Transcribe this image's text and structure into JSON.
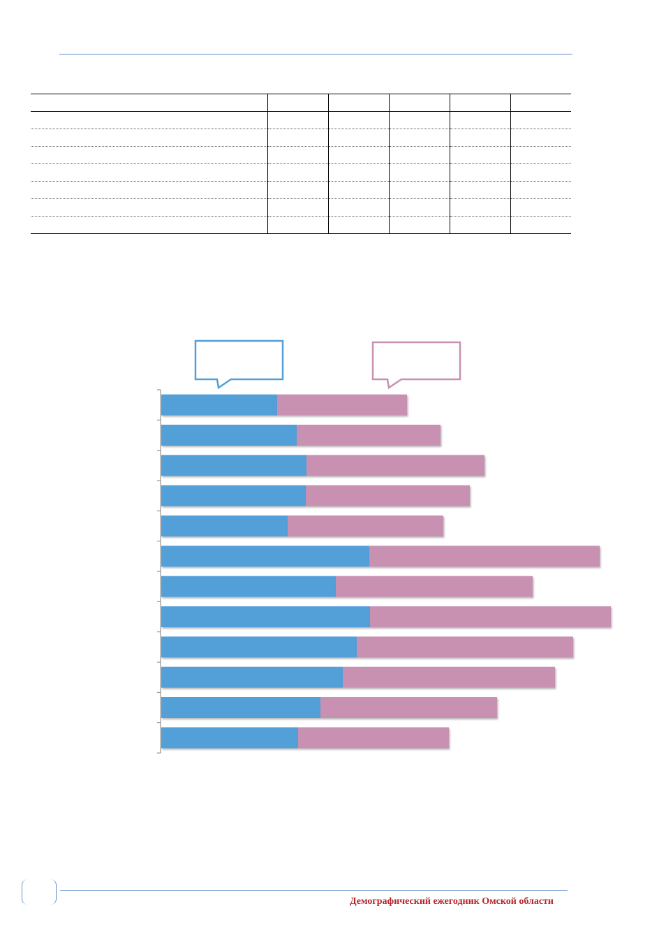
{
  "table": {
    "header": [
      "",
      "",
      "",
      "",
      "",
      ""
    ],
    "rows": [
      [
        "",
        "",
        "",
        "",
        "",
        ""
      ],
      [
        "",
        "",
        "",
        "",
        "",
        ""
      ],
      [
        "",
        "",
        "",
        "",
        "",
        ""
      ],
      [
        "",
        "",
        "",
        "",
        "",
        ""
      ],
      [
        "",
        "",
        "",
        "",
        "",
        ""
      ],
      [
        "",
        "",
        "",
        "",
        "",
        ""
      ],
      [
        "",
        "",
        "",
        "",
        "",
        ""
      ]
    ]
  },
  "chart_data": {
    "type": "bar",
    "orientation": "horizontal",
    "stacked": true,
    "title": "",
    "xlabel": "",
    "ylabel": "",
    "categories": [
      "",
      "",
      "",
      "",
      "",
      "",
      "",
      "",
      "",
      "",
      "",
      ""
    ],
    "series": [
      {
        "color": "#539fd8",
        "callout_text": "",
        "values": [
          166,
          194,
          208,
          207,
          181,
          298,
          250,
          299,
          280,
          260,
          228,
          196
        ]
      },
      {
        "color": "#c891b2",
        "callout_text": "",
        "values": [
          186,
          206,
          255,
          235,
          223,
          330,
          282,
          345,
          310,
          304,
          253,
          216
        ]
      }
    ],
    "grid": false,
    "legend": "callouts-top"
  },
  "footer": {
    "title": "Демографический ежегодник Омской области"
  }
}
